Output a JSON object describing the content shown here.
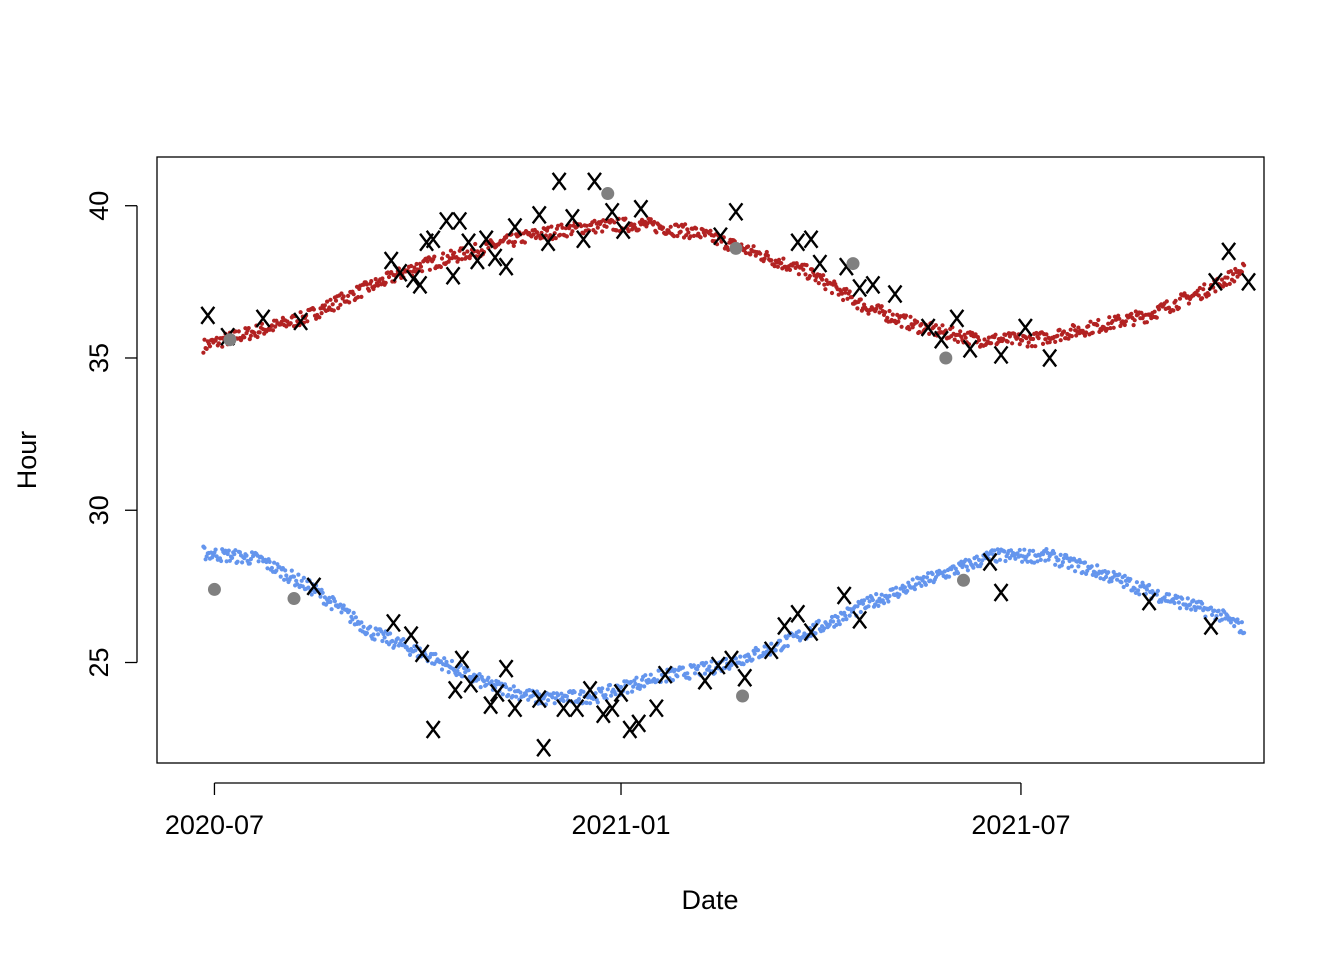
{
  "chart_data": {
    "type": "scatter",
    "title": "",
    "xlabel": "Date",
    "ylabel": "Hour",
    "x_type": "date",
    "xlim": [
      "2020-06-05",
      "2021-10-19"
    ],
    "ylim": [
      21.7,
      41.6
    ],
    "x_ticks": [
      "2020-07-01",
      "2021-01-01",
      "2021-07-01"
    ],
    "x_tick_labels": [
      "2020-07",
      "2021-01",
      "2021-07"
    ],
    "y_ticks": [
      25,
      30,
      35,
      40
    ],
    "y_tick_labels": [
      "25",
      "30",
      "35",
      "40"
    ],
    "grid": false,
    "legend": "none",
    "colors": {
      "upper_series": "#b22222",
      "lower_series": "#6495ed",
      "marker": "#000000",
      "point_marker": "#808080"
    },
    "series": [
      {
        "style": "dense-dots",
        "color": "#b22222",
        "curve": [
          [
            "2020-06-26",
            35.4
          ],
          [
            "2020-07-16",
            35.8
          ],
          [
            "2020-08-10",
            36.3
          ],
          [
            "2020-09-05",
            37.2
          ],
          [
            "2020-10-01",
            38.0
          ],
          [
            "2020-10-26",
            38.5
          ],
          [
            "2020-11-20",
            39.0
          ],
          [
            "2020-12-15",
            39.3
          ],
          [
            "2021-01-10",
            39.4
          ],
          [
            "2021-02-05",
            39.1
          ],
          [
            "2021-03-01",
            38.5
          ],
          [
            "2021-03-27",
            37.8
          ],
          [
            "2021-04-21",
            36.7
          ],
          [
            "2021-05-17",
            36.0
          ],
          [
            "2021-06-12",
            35.6
          ],
          [
            "2021-07-07",
            35.6
          ],
          [
            "2021-08-02",
            36.0
          ],
          [
            "2021-08-27",
            36.4
          ],
          [
            "2021-09-22",
            37.2
          ],
          [
            "2021-10-10",
            37.9
          ]
        ]
      },
      {
        "style": "dense-dots",
        "color": "#6495ed",
        "curve": [
          [
            "2020-06-26",
            28.6
          ],
          [
            "2020-07-21",
            28.4
          ],
          [
            "2020-08-15",
            27.4
          ],
          [
            "2020-09-10",
            26.0
          ],
          [
            "2020-10-06",
            25.2
          ],
          [
            "2020-11-01",
            24.3
          ],
          [
            "2020-11-26",
            23.8
          ],
          [
            "2020-12-21",
            23.9
          ],
          [
            "2021-01-16",
            24.5
          ],
          [
            "2021-02-10",
            24.8
          ],
          [
            "2021-03-08",
            25.4
          ],
          [
            "2021-04-02",
            26.2
          ],
          [
            "2021-04-28",
            27.1
          ],
          [
            "2021-05-23",
            27.8
          ],
          [
            "2021-06-18",
            28.5
          ],
          [
            "2021-07-13",
            28.5
          ],
          [
            "2021-08-08",
            27.9
          ],
          [
            "2021-09-02",
            27.2
          ],
          [
            "2021-09-28",
            26.6
          ],
          [
            "2021-10-10",
            26.1
          ]
        ]
      },
      {
        "style": "x-marker",
        "color": "#000000",
        "points": [
          [
            "2020-06-28",
            36.4
          ],
          [
            "2020-07-07",
            35.7
          ],
          [
            "2020-07-23",
            36.3
          ],
          [
            "2020-08-09",
            36.2
          ],
          [
            "2020-09-19",
            38.2
          ],
          [
            "2020-09-23",
            37.8
          ],
          [
            "2020-09-29",
            37.6
          ],
          [
            "2020-10-02",
            37.4
          ],
          [
            "2020-10-05",
            38.8
          ],
          [
            "2020-10-08",
            38.9
          ],
          [
            "2020-10-14",
            39.5
          ],
          [
            "2020-10-17",
            37.7
          ],
          [
            "2020-10-20",
            39.5
          ],
          [
            "2020-10-24",
            38.8
          ],
          [
            "2020-10-28",
            38.2
          ],
          [
            "2020-11-01",
            38.9
          ],
          [
            "2020-11-05",
            38.3
          ],
          [
            "2020-11-10",
            38.0
          ],
          [
            "2020-11-14",
            39.3
          ],
          [
            "2020-11-25",
            39.7
          ],
          [
            "2020-11-29",
            38.8
          ],
          [
            "2020-12-04",
            40.8
          ],
          [
            "2020-12-10",
            39.6
          ],
          [
            "2020-12-15",
            38.9
          ],
          [
            "2020-12-20",
            40.8
          ],
          [
            "2020-12-28",
            39.8
          ],
          [
            "2021-01-02",
            39.2
          ],
          [
            "2021-01-10",
            39.9
          ],
          [
            "2021-02-15",
            39.0
          ],
          [
            "2021-02-22",
            39.8
          ],
          [
            "2021-03-22",
            38.8
          ],
          [
            "2021-03-28",
            38.9
          ],
          [
            "2021-04-01",
            38.1
          ],
          [
            "2021-04-13",
            38.0
          ],
          [
            "2021-04-19",
            37.3
          ],
          [
            "2021-04-25",
            37.4
          ],
          [
            "2021-05-05",
            37.1
          ],
          [
            "2021-05-20",
            36.0
          ],
          [
            "2021-05-26",
            35.6
          ],
          [
            "2021-06-02",
            36.3
          ],
          [
            "2021-06-08",
            35.3
          ],
          [
            "2021-06-22",
            35.1
          ],
          [
            "2021-07-03",
            36.0
          ],
          [
            "2021-07-14",
            35.0
          ],
          [
            "2021-09-27",
            37.5
          ],
          [
            "2021-10-03",
            38.5
          ],
          [
            "2021-10-12",
            37.5
          ],
          [
            "2020-08-15",
            27.5
          ],
          [
            "2020-09-20",
            26.3
          ],
          [
            "2020-09-28",
            25.9
          ],
          [
            "2020-10-03",
            25.3
          ],
          [
            "2020-10-08",
            22.8
          ],
          [
            "2020-10-18",
            24.1
          ],
          [
            "2020-10-21",
            25.1
          ],
          [
            "2020-10-25",
            24.3
          ],
          [
            "2020-11-03",
            23.6
          ],
          [
            "2020-11-06",
            24.0
          ],
          [
            "2020-11-10",
            24.8
          ],
          [
            "2020-11-14",
            23.5
          ],
          [
            "2020-11-25",
            23.8
          ],
          [
            "2020-11-27",
            22.2
          ],
          [
            "2020-12-06",
            23.5
          ],
          [
            "2020-12-12",
            23.5
          ],
          [
            "2020-12-18",
            24.1
          ],
          [
            "2020-12-24",
            23.3
          ],
          [
            "2020-12-28",
            23.5
          ],
          [
            "2021-01-01",
            24.0
          ],
          [
            "2021-01-05",
            22.8
          ],
          [
            "2021-01-09",
            23.0
          ],
          [
            "2021-01-17",
            23.5
          ],
          [
            "2021-01-21",
            24.6
          ],
          [
            "2021-02-08",
            24.4
          ],
          [
            "2021-02-14",
            24.9
          ],
          [
            "2021-02-20",
            25.1
          ],
          [
            "2021-02-26",
            24.5
          ],
          [
            "2021-03-10",
            25.4
          ],
          [
            "2021-03-16",
            26.2
          ],
          [
            "2021-03-22",
            26.6
          ],
          [
            "2021-03-28",
            26.0
          ],
          [
            "2021-04-12",
            27.2
          ],
          [
            "2021-04-19",
            26.4
          ],
          [
            "2021-06-17",
            28.3
          ],
          [
            "2021-06-22",
            27.3
          ],
          [
            "2021-08-28",
            27.0
          ],
          [
            "2021-09-25",
            26.2
          ]
        ]
      },
      {
        "style": "gray-dot",
        "color": "#808080",
        "points": [
          [
            "2020-07-01",
            27.4
          ],
          [
            "2020-07-08",
            35.6
          ],
          [
            "2020-08-06",
            27.1
          ],
          [
            "2020-12-26",
            40.4
          ],
          [
            "2021-02-25",
            23.9
          ],
          [
            "2021-02-22",
            38.6
          ],
          [
            "2021-04-16",
            38.1
          ],
          [
            "2021-05-28",
            35.0
          ],
          [
            "2021-06-05",
            27.7
          ]
        ]
      }
    ]
  }
}
